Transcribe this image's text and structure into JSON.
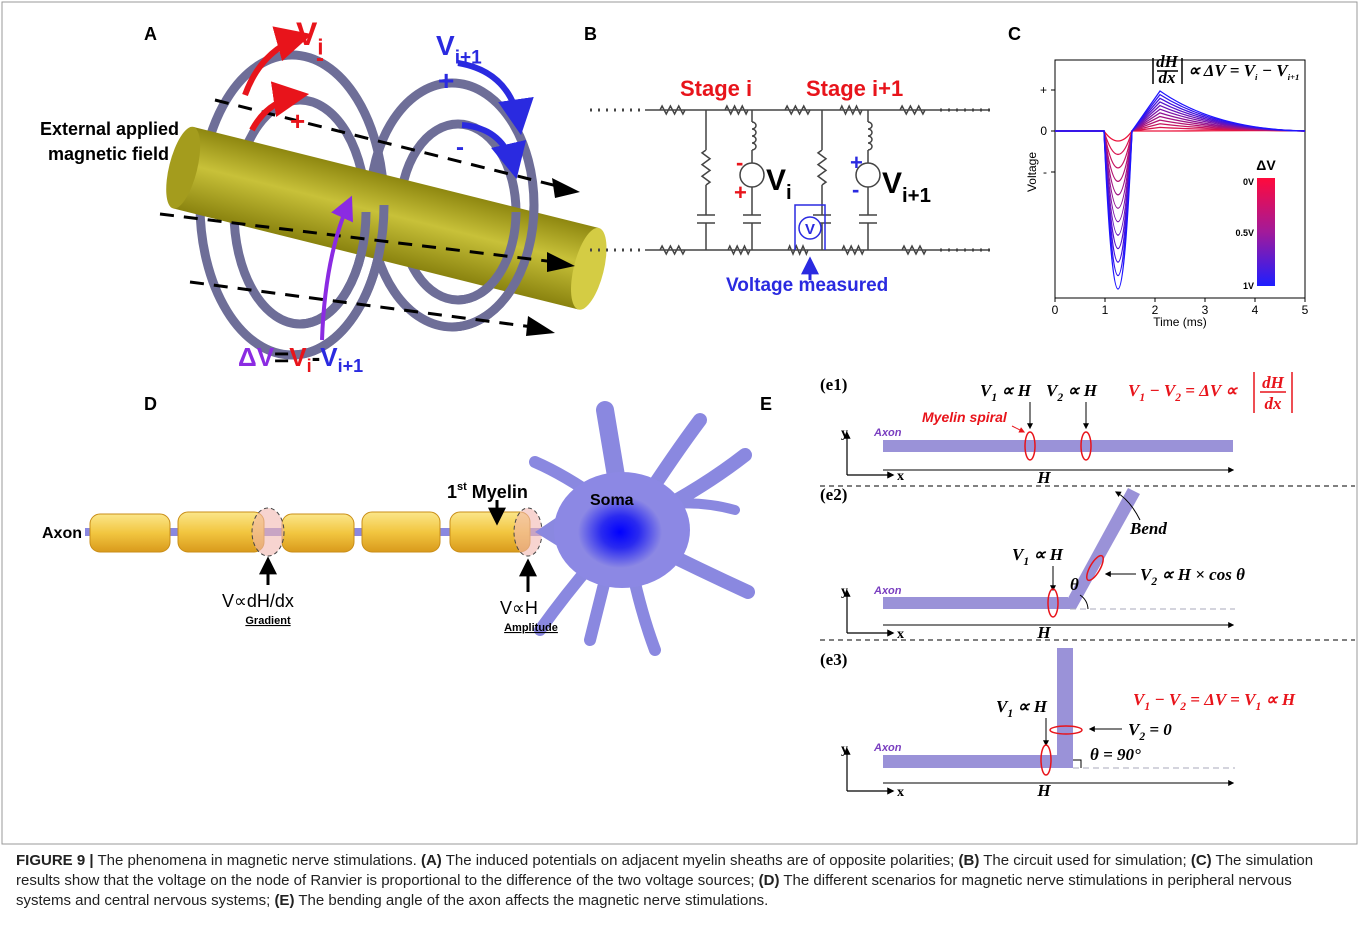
{
  "panel_a": {
    "label": "A",
    "field_text": [
      "External applied",
      "magnetic field"
    ],
    "v_i": [
      "V",
      "i"
    ],
    "v_i1": [
      "V",
      "i+1"
    ],
    "signs": {
      "plus": "+",
      "minus": "-"
    },
    "delta": {
      "lhs": "ΔV",
      "eq": "=",
      "v1": "V",
      "sub1": "i",
      "minus": "-",
      "v2": "V",
      "sub2": "i+1"
    }
  },
  "panel_b": {
    "label": "B",
    "stage_i": "Stage i",
    "stage_i1": "Stage i+1",
    "v_i": [
      "V",
      "i"
    ],
    "v_i1": [
      "V",
      "i+1"
    ],
    "signs": {
      "plus": "+",
      "minus": "-"
    },
    "meter": "V",
    "measured": "Voltage measured"
  },
  "panel_c": {
    "label": "C",
    "formula": {
      "num": "dH",
      "den": "dx",
      "rest": [
        "∝ ΔV = V",
        "i",
        " − V",
        "i+1"
      ]
    },
    "ylabel": "Voltage",
    "yticks": [
      "+",
      "0",
      "-"
    ],
    "xticks": [
      "0",
      "1",
      "2",
      "3",
      "4",
      "5"
    ],
    "xlabel": "Time (ms)",
    "colorbar": {
      "title": "ΔV",
      "labels": [
        "0V",
        "0.5V",
        "1V"
      ]
    }
  },
  "panel_d": {
    "label": "D",
    "axon": "Axon",
    "myelin": {
      "num": "1",
      "sup": "st",
      "word": "Myelin"
    },
    "soma": "Soma",
    "gradient": {
      "formula": "V∝dH/dx",
      "caption": "Gradient"
    },
    "amplitude": {
      "formula": "V∝H",
      "caption": "Amplitude"
    }
  },
  "panel_e": {
    "label": "E",
    "e1": {
      "tag": "(e1)",
      "v1": [
        "V",
        "1",
        " ∝ H"
      ],
      "v2": [
        "V",
        "2",
        " ∝ H"
      ],
      "eq": [
        "V",
        "1",
        " − V",
        "2",
        " = ΔV ∝"
      ],
      "num": "dH",
      "den": "dx",
      "myelin": "Myelin spiral",
      "axon": "Axon",
      "y": "y",
      "x": "x",
      "h": "H"
    },
    "e2": {
      "tag": "(e2)",
      "v1": [
        "V",
        "1",
        " ∝ H"
      ],
      "v2": [
        "V",
        "2",
        " ∝ H × cos θ"
      ],
      "bend": "Bend",
      "theta": "θ",
      "axon": "Axon",
      "y": "y",
      "x": "x",
      "h": "H"
    },
    "e3": {
      "tag": "(e3)",
      "v1": [
        "V",
        "1",
        " ∝ H"
      ],
      "v2": [
        "V",
        "2",
        " = 0"
      ],
      "eq": [
        "V",
        "1",
        " − V",
        "2",
        " = ΔV = V",
        "1",
        " ∝ H"
      ],
      "theta": "θ = 90°",
      "axon": "Axon",
      "y": "y",
      "x": "x",
      "h": "H"
    }
  },
  "caption": [
    "FIGURE 9 |",
    " The phenomena in magnetic nerve stimulations. ",
    "(A)",
    " The induced potentials on adjacent myelin sheaths are of opposite polarities; ",
    "(B)",
    " The circuit used for simulation; ",
    "(C)",
    " The simulation results show that the voltage on the node of Ranvier is proportional to the difference of the two voltage sources; ",
    "(D)",
    " The different scenarios for magnetic nerve stimulations in peripheral nervous systems and central nervous systems; ",
    "(E)",
    " The bending angle of the axon affects the magnetic nerve stimulations."
  ]
}
